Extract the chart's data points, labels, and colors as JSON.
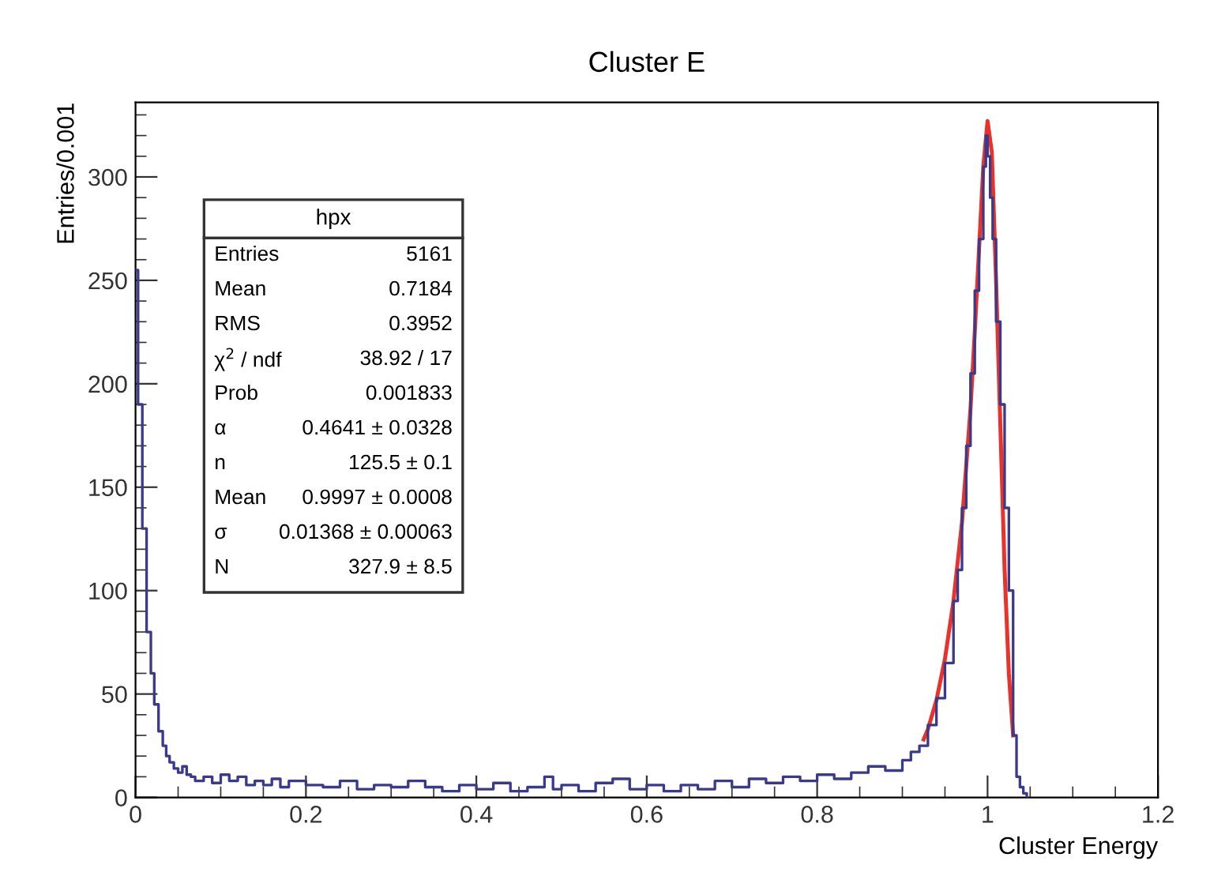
{
  "chart_data": {
    "type": "step",
    "title": "Cluster E",
    "xlabel": "Cluster Energy",
    "ylabel": "Entries/0.001",
    "xlim": [
      0,
      1.2
    ],
    "ylim": [
      0,
      336
    ],
    "xticks": [
      0,
      0.2,
      0.4,
      0.6,
      0.8,
      1,
      1.2
    ],
    "yticks": [
      0,
      50,
      100,
      150,
      200,
      250,
      300
    ],
    "grid": false,
    "series": [
      {
        "color": "#3a3a8c",
        "x": [
          0,
          0.003,
          0.008,
          0.013,
          0.018,
          0.022,
          0.027,
          0.032,
          0.036,
          0.04,
          0.045,
          0.05,
          0.055,
          0.06,
          0.065,
          0.07,
          0.08,
          0.09,
          0.1,
          0.11,
          0.12,
          0.13,
          0.14,
          0.15,
          0.16,
          0.17,
          0.18,
          0.2,
          0.22,
          0.24,
          0.26,
          0.28,
          0.3,
          0.32,
          0.34,
          0.36,
          0.38,
          0.4,
          0.42,
          0.44,
          0.46,
          0.48,
          0.49,
          0.5,
          0.52,
          0.54,
          0.56,
          0.58,
          0.6,
          0.62,
          0.64,
          0.66,
          0.68,
          0.7,
          0.72,
          0.74,
          0.76,
          0.78,
          0.8,
          0.82,
          0.84,
          0.86,
          0.88,
          0.9,
          0.91,
          0.92,
          0.93,
          0.94,
          0.95,
          0.96,
          0.965,
          0.97,
          0.975,
          0.98,
          0.985,
          0.99,
          0.995,
          0.998,
          1.0,
          1.003,
          1.006,
          1.01,
          1.015,
          1.02,
          1.025,
          1.03,
          1.034,
          1.038,
          1.042,
          1.046
        ],
        "values": [
          255,
          190,
          130,
          80,
          60,
          45,
          32,
          25,
          20,
          17,
          14,
          12,
          15,
          11,
          10,
          8,
          10,
          7,
          11,
          8,
          10,
          6,
          8,
          6,
          9,
          5,
          8,
          6,
          5,
          8,
          4,
          6,
          5,
          8,
          5,
          3,
          6,
          4,
          7,
          3,
          5,
          10,
          4,
          6,
          3,
          7,
          9,
          4,
          6,
          3,
          6,
          4,
          8,
          5,
          9,
          7,
          10,
          8,
          11,
          9,
          12,
          15,
          13,
          18,
          22,
          25,
          35,
          48,
          65,
          95,
          110,
          140,
          170,
          205,
          245,
          270,
          305,
          320,
          310,
          290,
          270,
          230,
          190,
          140,
          100,
          30,
          10,
          5,
          2,
          0
        ]
      },
      {
        "type": "line",
        "color": "#e8322a",
        "x": [
          0.925,
          0.93,
          0.94,
          0.95,
          0.96,
          0.97,
          0.98,
          0.985,
          0.99,
          0.995,
          1.0,
          1.005,
          1.01,
          1.015,
          1.02,
          1.025,
          1.03
        ],
        "values": [
          28,
          33,
          47,
          67,
          95,
          133,
          188,
          225,
          265,
          305,
          327,
          312,
          250,
          180,
          110,
          60,
          30
        ]
      }
    ],
    "annotations": [
      "hpx",
      "Entries",
      "5161",
      "Mean",
      "0.7184",
      "RMS",
      "0.3952",
      "χ$^{2}$ / ndf",
      "38.92 / 17",
      "Prob",
      "0.001833",
      "α",
      "0.4641 ± 0.0328",
      "n",
      "125.5 ± 0.1",
      "Mean",
      "0.9997 ± 0.0008",
      "σ",
      "0.01368 ± 0.00063",
      "N",
      "327.9 ± 8.5"
    ]
  }
}
